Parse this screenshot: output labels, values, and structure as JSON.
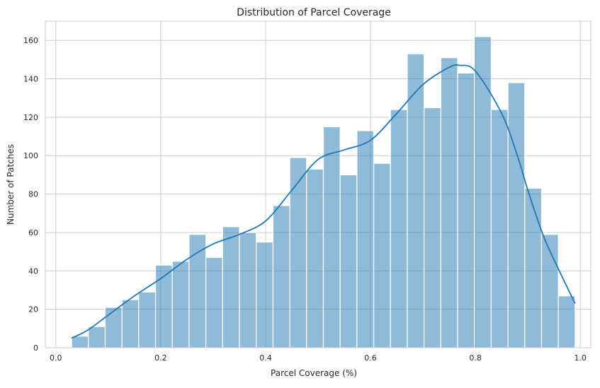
{
  "chart_data": {
    "type": "bar",
    "subtype": "histogram-with-kde",
    "title": "Distribution of Parcel Coverage",
    "xlabel": "Parcel Coverage (%)",
    "ylabel": "Number of Patches",
    "xlim": [
      -0.02,
      1.02
    ],
    "ylim": [
      0,
      170
    ],
    "xticks": [
      "0.0",
      "0.2",
      "0.4",
      "0.6",
      "0.8",
      "1.0"
    ],
    "yticks": [
      "0",
      "20",
      "40",
      "60",
      "80",
      "100",
      "120",
      "140",
      "160"
    ],
    "grid": true,
    "color": "#1f77b4",
    "bin_edges": [
      0.0301,
      0.0621,
      0.0941,
      0.1261,
      0.1581,
      0.1901,
      0.2221,
      0.2541,
      0.2861,
      0.3181,
      0.3501,
      0.3821,
      0.4141,
      0.4461,
      0.4781,
      0.5101,
      0.5421,
      0.5741,
      0.6061,
      0.6381,
      0.6701,
      0.7021,
      0.7341,
      0.7661,
      0.7981,
      0.8301,
      0.8621,
      0.8941,
      0.9261,
      0.9581,
      0.9901
    ],
    "values": [
      6,
      11,
      21,
      25,
      29,
      43,
      45,
      59,
      47,
      63,
      60,
      55,
      74,
      99,
      93,
      115,
      90,
      113,
      96,
      124,
      153,
      125,
      151,
      143,
      162,
      124,
      138,
      83,
      59,
      27
    ],
    "kde": {
      "x": [
        0.03,
        0.06,
        0.1,
        0.15,
        0.2,
        0.25,
        0.3,
        0.35,
        0.4,
        0.45,
        0.5,
        0.55,
        0.6,
        0.65,
        0.7,
        0.75,
        0.77,
        0.8,
        0.85,
        0.88,
        0.9,
        0.93,
        0.96,
        0.99
      ],
      "y": [
        5,
        9,
        17,
        27,
        36,
        46,
        54,
        59,
        66,
        82,
        98,
        103,
        108,
        122,
        137,
        146,
        147,
        144,
        122,
        100,
        82,
        58,
        40,
        23
      ]
    }
  }
}
